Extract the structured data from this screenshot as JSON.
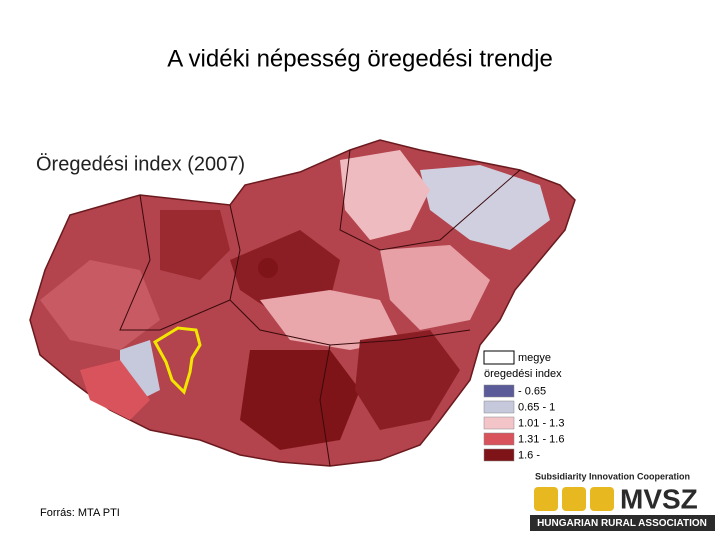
{
  "slide": {
    "title": "A vidéki népesség öregedési trendje",
    "source": "Forrás: MTA PTI"
  },
  "map": {
    "title": "Öregedési index (2007)",
    "legend": {
      "boundary_label": "megye",
      "title": "öregedési index",
      "items": [
        {
          "label": "- 0.65",
          "color": "#5b5b9a"
        },
        {
          "label": "0.65 - 1",
          "color": "#c6c8dc"
        },
        {
          "label": "1.01 - 1.3",
          "color": "#f3c4c8"
        },
        {
          "label": "1.31 - 1.6",
          "color": "#d9535c"
        },
        {
          "label": "1.6 -",
          "color": "#7e1418"
        }
      ]
    }
  },
  "logo": {
    "tagline": "Subsidiarity Innovation Cooperation",
    "name": "MVSZ",
    "subtitle": "HUNGARIAN RURAL ASSOCIATION"
  }
}
